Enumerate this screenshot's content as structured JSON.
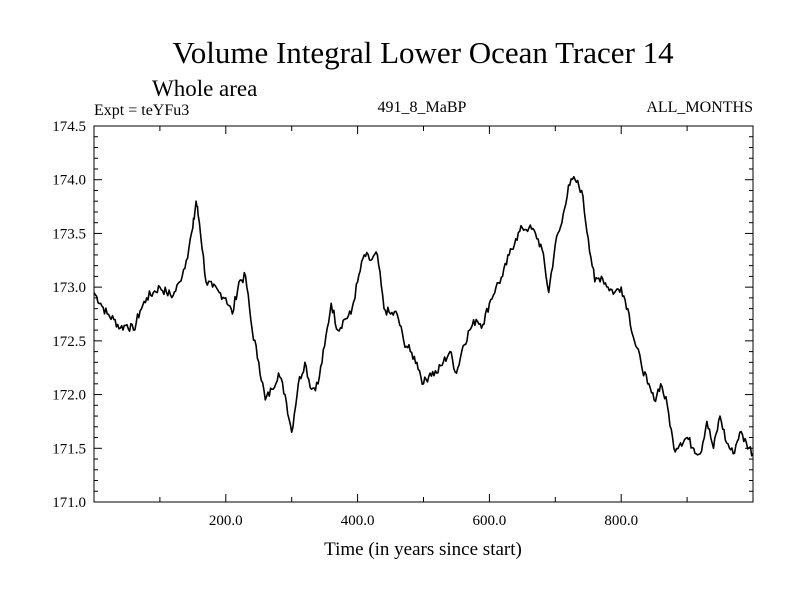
{
  "chart_data": {
    "type": "line",
    "title": "Volume Integral Lower Ocean Tracer 14",
    "subtitle": "Whole area",
    "header_left": "Expt = teYFu3",
    "header_center": "491_8_MaBP",
    "header_right": "ALL_MONTHS",
    "xlabel": "Time (in years since start)",
    "ylabel": "",
    "xlim": [
      0,
      1000
    ],
    "ylim": [
      171.0,
      174.5
    ],
    "x_ticks": [
      200,
      400,
      600,
      800
    ],
    "x_tick_labels": [
      "200.0",
      "400.0",
      "600.0",
      "800.0"
    ],
    "y_ticks": [
      171.0,
      171.5,
      172.0,
      172.5,
      173.0,
      173.5,
      174.0,
      174.5
    ],
    "y_tick_labels": [
      "171.0",
      "171.5",
      "172.0",
      "172.5",
      "173.0",
      "173.5",
      "174.0",
      "174.5"
    ],
    "series": [
      {
        "name": "Tracer 14",
        "x": [
          0,
          10,
          20,
          30,
          40,
          50,
          60,
          70,
          80,
          90,
          100,
          110,
          120,
          130,
          140,
          150,
          155,
          160,
          170,
          180,
          190,
          200,
          210,
          220,
          230,
          240,
          250,
          260,
          270,
          280,
          290,
          300,
          310,
          320,
          330,
          340,
          350,
          360,
          370,
          380,
          390,
          400,
          410,
          420,
          430,
          440,
          450,
          460,
          470,
          480,
          490,
          500,
          510,
          520,
          530,
          540,
          550,
          560,
          570,
          580,
          590,
          600,
          610,
          620,
          630,
          640,
          650,
          660,
          670,
          680,
          690,
          700,
          710,
          720,
          730,
          740,
          750,
          760,
          770,
          780,
          790,
          800,
          810,
          820,
          830,
          840,
          850,
          860,
          870,
          880,
          890,
          900,
          910,
          920,
          930,
          940,
          950,
          960,
          970,
          980,
          990,
          1000
        ],
        "values": [
          172.95,
          172.85,
          172.75,
          172.7,
          172.62,
          172.65,
          172.6,
          172.78,
          172.9,
          172.95,
          173.0,
          172.95,
          172.92,
          173.05,
          173.25,
          173.55,
          173.8,
          173.6,
          173.05,
          173.0,
          172.95,
          172.9,
          172.75,
          173.05,
          173.1,
          172.6,
          172.3,
          171.95,
          172.05,
          172.2,
          172.0,
          171.65,
          172.1,
          172.3,
          172.05,
          172.1,
          172.45,
          172.85,
          172.6,
          172.7,
          172.75,
          173.05,
          173.3,
          173.25,
          173.3,
          172.8,
          172.75,
          172.75,
          172.5,
          172.4,
          172.3,
          172.1,
          172.2,
          172.2,
          172.3,
          172.4,
          172.2,
          172.45,
          172.6,
          172.7,
          172.65,
          172.85,
          173.0,
          173.1,
          173.3,
          173.45,
          173.55,
          173.55,
          173.5,
          173.35,
          172.95,
          173.4,
          173.6,
          173.95,
          174.0,
          173.9,
          173.45,
          173.05,
          173.1,
          173.0,
          172.95,
          173.0,
          172.8,
          172.5,
          172.3,
          172.1,
          171.95,
          172.1,
          171.9,
          171.5,
          171.55,
          171.6,
          171.5,
          171.45,
          171.75,
          171.5,
          171.8,
          171.55,
          171.45,
          171.65,
          171.55,
          171.45
        ]
      }
    ]
  },
  "style": {
    "line_color": "#000000",
    "axis_color": "#000000",
    "background": "#ffffff"
  }
}
